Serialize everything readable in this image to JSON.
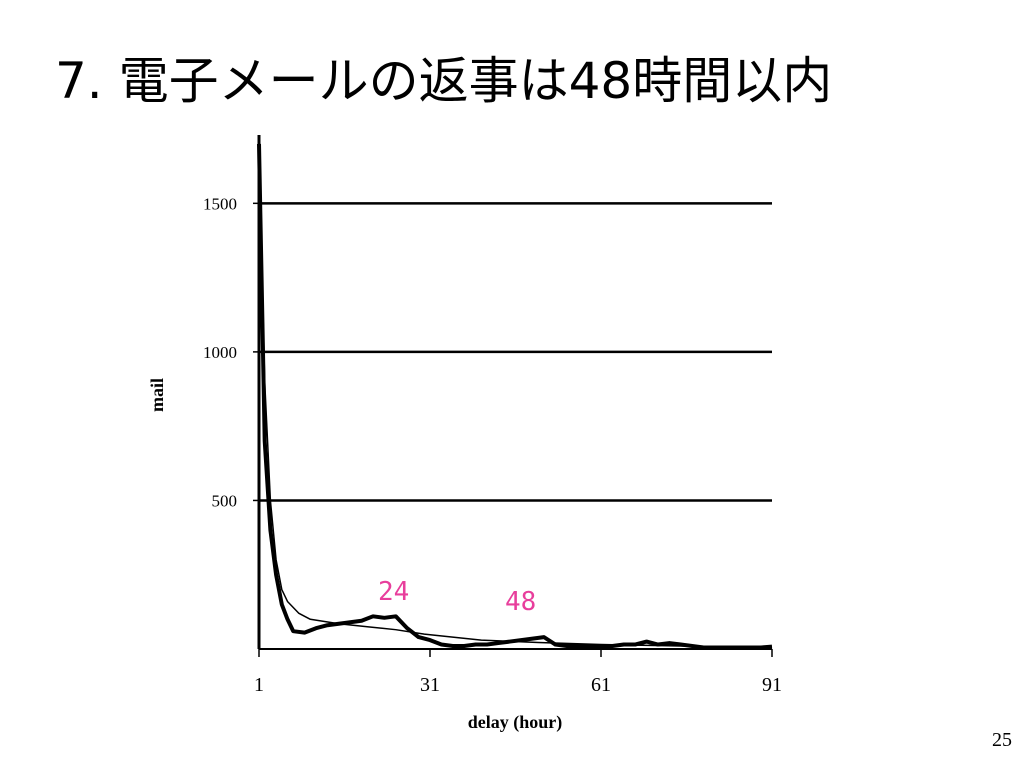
{
  "slide_title": "7. 電子メールの返事は48時間以内",
  "page_number": "25",
  "chart_data": {
    "type": "line",
    "xlabel": "delay (hour)",
    "ylabel": "mail",
    "xlim": [
      1,
      91
    ],
    "ylim": [
      0,
      1730
    ],
    "xticks": [
      1,
      31,
      61,
      91
    ],
    "yticks": [
      500,
      1000,
      1500
    ],
    "grid": true,
    "annotations": [
      "24",
      "48"
    ],
    "series": [
      {
        "color": "#000000",
        "width": 4,
        "x": [
          1,
          2,
          3,
          4,
          5,
          6,
          7,
          9,
          11,
          13,
          15,
          17,
          19,
          21,
          23,
          25,
          27,
          29,
          31,
          33,
          35,
          37,
          39,
          41,
          43,
          45,
          47,
          49,
          51,
          53,
          55,
          57,
          59,
          61,
          63,
          65,
          67,
          69,
          71,
          73,
          75,
          77,
          79,
          81,
          83,
          85,
          87,
          89,
          91
        ],
        "values": [
          1700,
          700,
          400,
          250,
          150,
          100,
          60,
          55,
          70,
          80,
          85,
          90,
          95,
          110,
          105,
          110,
          70,
          40,
          30,
          15,
          10,
          10,
          15,
          15,
          20,
          25,
          30,
          35,
          40,
          15,
          10,
          10,
          10,
          10,
          10,
          15,
          15,
          25,
          15,
          20,
          15,
          10,
          5,
          5,
          5,
          5,
          5,
          5,
          8
        ]
      },
      {
        "color": "#000000",
        "width": 1.5,
        "x": [
          1,
          2,
          3,
          4,
          5,
          6,
          8,
          10,
          15,
          20,
          25,
          30,
          40,
          50,
          61,
          75,
          91
        ],
        "values": [
          1700,
          900,
          500,
          300,
          200,
          160,
          120,
          100,
          85,
          75,
          65,
          50,
          30,
          22,
          15,
          10,
          7
        ]
      }
    ]
  }
}
